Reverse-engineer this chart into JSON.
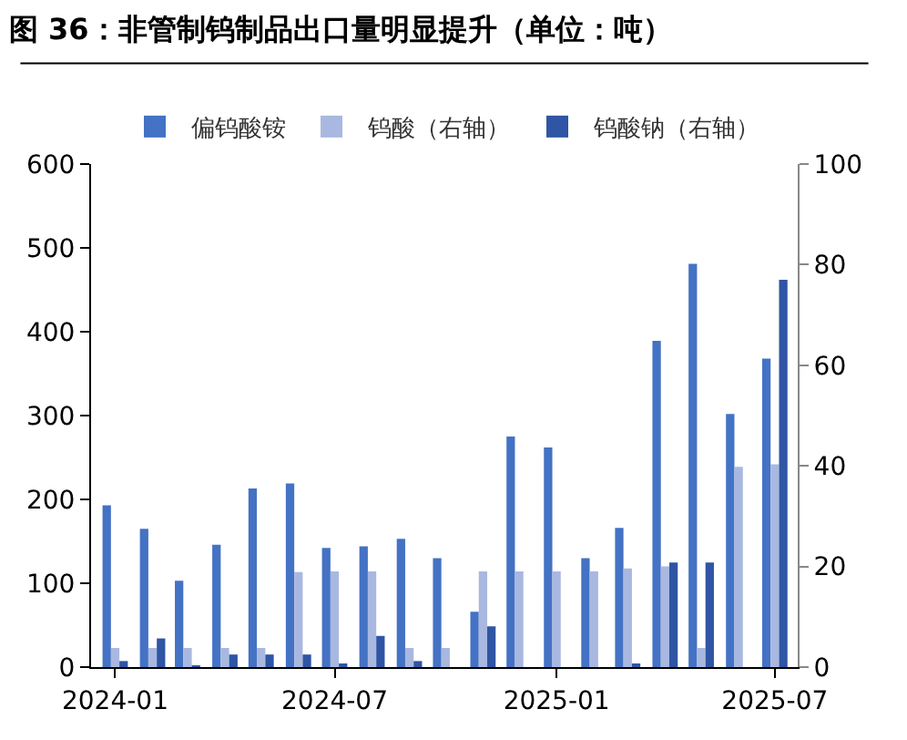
{
  "chart_data": {
    "type": "bar",
    "title": "图 36：非管制钨制品出口量明显提升（单位：吨）",
    "x": [
      "2024-01",
      "2024-02",
      "2024-03",
      "2024-04",
      "2024-05",
      "2024-06",
      "2024-07",
      "2024-08",
      "2024-09",
      "2024-10",
      "2024-11",
      "2024-12",
      "2025-01",
      "2025-02",
      "2025-03",
      "2025-04",
      "2025-05",
      "2025-06",
      "2025-07"
    ],
    "xlim": [
      "2023-12-12",
      "2025-07-20"
    ],
    "xticks": [
      "2024-01",
      "2024-07",
      "2025-01",
      "2025-07"
    ],
    "series": [
      {
        "name": "偏钨酸铵",
        "color": "#4472c4",
        "values": [
          193,
          165,
          103,
          146,
          213,
          219,
          142,
          144,
          153,
          130,
          66,
          275,
          262,
          130,
          166,
          389,
          481,
          302,
          368
        ]
      },
      {
        "name": "钨酸（右轴）",
        "color": "#a9b8e0",
        "axis": "y2",
        "values": [
          3.8,
          3.8,
          3.8,
          3.8,
          3.8,
          18.9,
          19,
          19,
          3.8,
          3.8,
          19,
          19,
          19,
          19,
          19.6,
          20,
          3.8,
          39.8,
          40.3
        ]
      },
      {
        "name": "钨酸钠（右轴）",
        "color": "#2f55a4",
        "axis": "y2",
        "values": [
          1.2,
          5.7,
          0.2,
          2.5,
          2.5,
          2.5,
          0.6,
          6.2,
          1.2,
          0,
          8.1,
          0,
          0,
          0,
          0.6,
          20.8,
          20.8,
          0,
          77
        ]
      }
    ],
    "ylim": [
      0,
      600
    ],
    "yticks": [
      0,
      100,
      200,
      300,
      400,
      500,
      600
    ],
    "y2lim": [
      0,
      100
    ],
    "y2ticks": [
      0,
      20,
      40,
      60,
      80,
      100
    ],
    "legend": "top"
  }
}
